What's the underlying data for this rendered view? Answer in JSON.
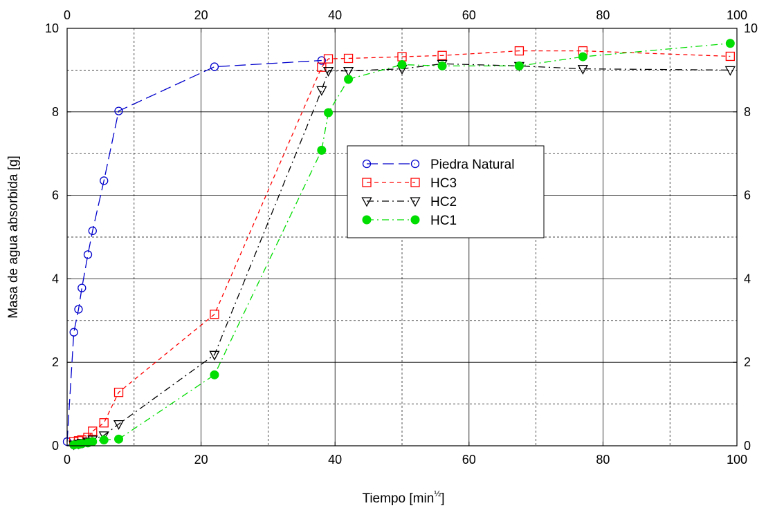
{
  "chart_data": {
    "type": "line",
    "xlabel": "Tiempo [min",
    "xlabel_sup": "½",
    "xlabel_suffix": "]",
    "ylabel": "Masa de agua absorbida [g]",
    "xlim": [
      0,
      100
    ],
    "ylim": [
      0,
      10
    ],
    "x_major_ticks": [
      "0",
      "20",
      "40",
      "60",
      "80",
      "100"
    ],
    "y_major_ticks": [
      "0",
      "2",
      "4",
      "6",
      "8",
      "10"
    ],
    "x_minor_dashed_grid": [
      10,
      30,
      50,
      70,
      90
    ],
    "y_minor_dashed_grid": [
      1,
      3,
      5,
      7,
      9
    ],
    "grid": true,
    "legend_position": "center",
    "series": [
      {
        "name": "Piedra Natural",
        "color": "#0000cc",
        "marker": "open-circle",
        "line_style": "long-dash",
        "x": [
          0,
          1,
          1.7,
          2.2,
          3.1,
          3.8,
          5.5,
          7.7,
          22,
          38
        ],
        "y": [
          0.1,
          2.72,
          3.27,
          3.78,
          4.58,
          5.15,
          6.35,
          8.02,
          9.08,
          9.23
        ]
      },
      {
        "name": "HC3",
        "color": "#ff0000",
        "marker": "open-square",
        "line_style": "short-dash",
        "x": [
          1,
          1.7,
          2.2,
          3.1,
          3.8,
          5.5,
          7.7,
          22,
          38,
          39,
          42,
          50,
          56,
          67.5,
          77,
          99
        ],
        "y": [
          0.1,
          0.12,
          0.14,
          0.2,
          0.35,
          0.55,
          1.28,
          3.15,
          9.07,
          9.27,
          9.28,
          9.32,
          9.35,
          9.46,
          9.46,
          9.33
        ]
      },
      {
        "name": "HC2",
        "color": "#000000",
        "marker": "open-triangle-down",
        "line_style": "dash-dot",
        "x": [
          1,
          1.7,
          2.2,
          3.1,
          3.8,
          5.5,
          7.7,
          22,
          38,
          39,
          42,
          50,
          56,
          67.5,
          77,
          99
        ],
        "y": [
          0.03,
          0.05,
          0.07,
          0.1,
          0.15,
          0.25,
          0.52,
          2.18,
          8.52,
          8.98,
          8.98,
          9.03,
          9.15,
          9.1,
          9.03,
          9.0
        ]
      },
      {
        "name": "HC1",
        "color": "#00dd00",
        "marker": "filled-circle",
        "line_style": "dash-dot",
        "x": [
          1,
          1.7,
          2.2,
          3.1,
          3.8,
          5.5,
          7.7,
          22,
          38,
          39,
          42,
          50,
          56,
          67.5,
          77,
          99
        ],
        "y": [
          0.02,
          0.03,
          0.05,
          0.07,
          0.1,
          0.14,
          0.16,
          1.7,
          7.08,
          7.98,
          8.78,
          9.13,
          9.1,
          9.1,
          9.32,
          9.64
        ]
      }
    ]
  }
}
